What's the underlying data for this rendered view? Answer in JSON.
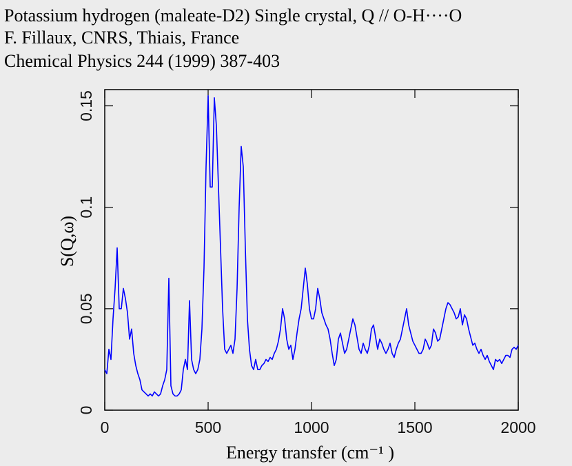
{
  "chart_data": {
    "type": "line",
    "title_lines": [
      "Potassium hydrogen (maleate-D2) Single crystal, Q // O-H····O",
      "F. Fillaux, CNRS, Thiais, France",
      "Chemical Physics  244 (1999) 387-403"
    ],
    "xlabel": "Energy transfer (cm⁻¹ )",
    "ylabel": "S(Q,ω)",
    "color": "#0000ff",
    "xlim": [
      0,
      2000
    ],
    "ylim": [
      0,
      0.158
    ],
    "xticks": [
      0,
      500,
      1000,
      1500,
      2000
    ],
    "yticks": [
      0,
      0.05,
      0.1,
      0.15
    ],
    "x": [
      0,
      10,
      20,
      30,
      40,
      50,
      60,
      70,
      80,
      90,
      100,
      110,
      120,
      130,
      140,
      150,
      160,
      170,
      180,
      190,
      200,
      210,
      220,
      230,
      240,
      250,
      260,
      270,
      280,
      290,
      300,
      310,
      320,
      330,
      340,
      350,
      360,
      370,
      380,
      390,
      400,
      410,
      420,
      430,
      440,
      450,
      460,
      470,
      480,
      490,
      500,
      510,
      520,
      530,
      540,
      550,
      560,
      570,
      580,
      590,
      600,
      610,
      620,
      630,
      640,
      650,
      660,
      670,
      680,
      690,
      700,
      710,
      720,
      730,
      740,
      750,
      760,
      770,
      780,
      790,
      800,
      810,
      820,
      830,
      840,
      850,
      860,
      870,
      880,
      890,
      900,
      910,
      920,
      930,
      940,
      950,
      960,
      970,
      980,
      990,
      1000,
      1010,
      1020,
      1030,
      1040,
      1050,
      1060,
      1070,
      1080,
      1090,
      1100,
      1110,
      1120,
      1130,
      1140,
      1150,
      1160,
      1170,
      1180,
      1190,
      1200,
      1210,
      1220,
      1230,
      1240,
      1250,
      1260,
      1270,
      1280,
      1290,
      1300,
      1310,
      1320,
      1330,
      1340,
      1350,
      1360,
      1370,
      1380,
      1390,
      1400,
      1410,
      1420,
      1430,
      1440,
      1450,
      1460,
      1470,
      1480,
      1490,
      1500,
      1510,
      1520,
      1530,
      1540,
      1550,
      1560,
      1570,
      1580,
      1590,
      1600,
      1610,
      1620,
      1630,
      1640,
      1650,
      1660,
      1670,
      1680,
      1690,
      1700,
      1710,
      1720,
      1730,
      1740,
      1750,
      1760,
      1770,
      1780,
      1790,
      1800,
      1810,
      1820,
      1830,
      1840,
      1850,
      1860,
      1870,
      1880,
      1890,
      1900,
      1910,
      1920,
      1930,
      1940,
      1950,
      1960,
      1970,
      1980,
      1990,
      2000
    ],
    "values": [
      0.02,
      0.018,
      0.03,
      0.025,
      0.045,
      0.06,
      0.08,
      0.05,
      0.05,
      0.06,
      0.055,
      0.048,
      0.035,
      0.04,
      0.028,
      0.022,
      0.018,
      0.015,
      0.01,
      0.009,
      0.008,
      0.007,
      0.008,
      0.007,
      0.009,
      0.008,
      0.007,
      0.008,
      0.012,
      0.015,
      0.02,
      0.065,
      0.012,
      0.008,
      0.007,
      0.007,
      0.008,
      0.01,
      0.02,
      0.025,
      0.02,
      0.054,
      0.025,
      0.02,
      0.018,
      0.02,
      0.025,
      0.04,
      0.07,
      0.12,
      0.155,
      0.11,
      0.11,
      0.154,
      0.14,
      0.11,
      0.08,
      0.05,
      0.03,
      0.028,
      0.03,
      0.032,
      0.028,
      0.035,
      0.06,
      0.1,
      0.13,
      0.12,
      0.08,
      0.045,
      0.03,
      0.022,
      0.02,
      0.025,
      0.02,
      0.02,
      0.022,
      0.023,
      0.025,
      0.024,
      0.026,
      0.025,
      0.028,
      0.03,
      0.034,
      0.04,
      0.05,
      0.045,
      0.035,
      0.03,
      0.032,
      0.025,
      0.03,
      0.038,
      0.045,
      0.05,
      0.06,
      0.07,
      0.062,
      0.05,
      0.045,
      0.045,
      0.05,
      0.06,
      0.055,
      0.048,
      0.045,
      0.042,
      0.04,
      0.035,
      0.028,
      0.022,
      0.025,
      0.035,
      0.038,
      0.033,
      0.028,
      0.03,
      0.035,
      0.04,
      0.045,
      0.042,
      0.036,
      0.03,
      0.028,
      0.033,
      0.03,
      0.028,
      0.032,
      0.04,
      0.042,
      0.036,
      0.03,
      0.035,
      0.033,
      0.03,
      0.028,
      0.03,
      0.033,
      0.028,
      0.026,
      0.03,
      0.033,
      0.035,
      0.04,
      0.045,
      0.05,
      0.042,
      0.038,
      0.034,
      0.032,
      0.03,
      0.028,
      0.028,
      0.03,
      0.035,
      0.033,
      0.03,
      0.032,
      0.04,
      0.038,
      0.034,
      0.035,
      0.04,
      0.045,
      0.05,
      0.053,
      0.052,
      0.05,
      0.048,
      0.045,
      0.046,
      0.05,
      0.042,
      0.047,
      0.045,
      0.04,
      0.036,
      0.032,
      0.033,
      0.03,
      0.028,
      0.03,
      0.027,
      0.025,
      0.027,
      0.024,
      0.022,
      0.02,
      0.025,
      0.024,
      0.025,
      0.023,
      0.025,
      0.027,
      0.027,
      0.026,
      0.03,
      0.031,
      0.03,
      0.032
    ]
  }
}
